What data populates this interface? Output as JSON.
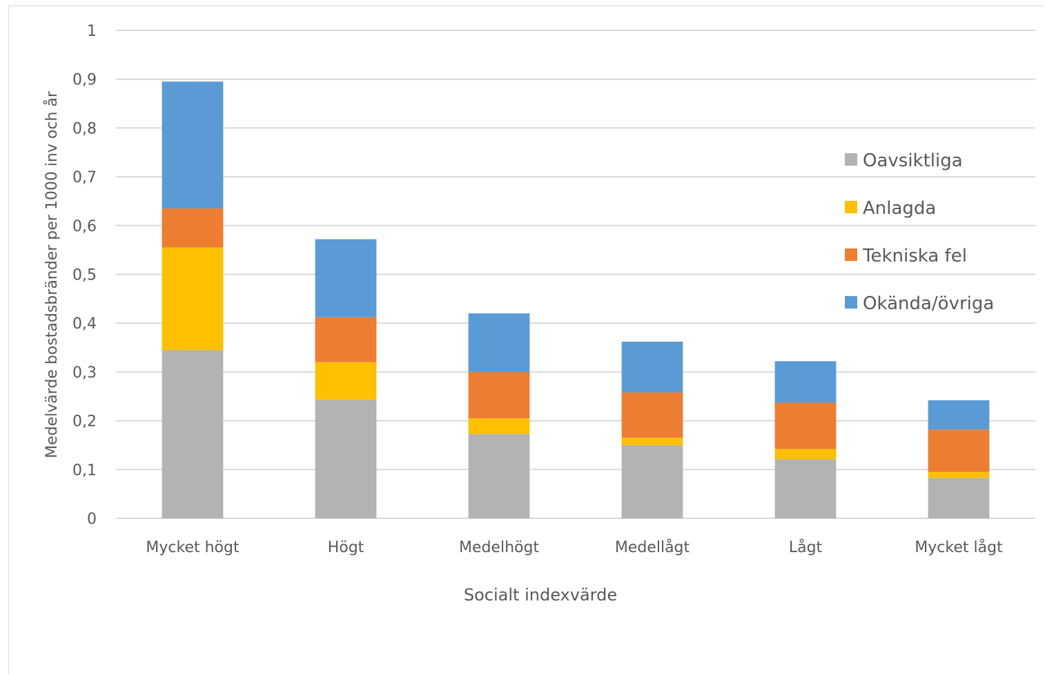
{
  "chart_data": {
    "type": "bar",
    "stacked": true,
    "xlabel": "Socialt indexvärde",
    "ylabel": "Medelvärde bostadsbränder per 1000 inv och år",
    "ylim": [
      0,
      1
    ],
    "yticks": [
      "0",
      "0,1",
      "0,2",
      "0,3",
      "0,4",
      "0,5",
      "0,6",
      "0,7",
      "0,8",
      "0,9",
      "1"
    ],
    "grid": true,
    "legend_position": "right",
    "categories": [
      "Mycket högt",
      "Högt",
      "Medelhögt",
      "Medellågt",
      "Lågt",
      "Mycket lågt"
    ],
    "series": [
      {
        "name": "Oavsiktliga",
        "color": "#b3b3b3",
        "values": [
          0.345,
          0.243,
          0.173,
          0.15,
          0.121,
          0.083
        ]
      },
      {
        "name": "Anlagda",
        "color": "#fec000",
        "values": [
          0.21,
          0.077,
          0.032,
          0.015,
          0.021,
          0.012
        ]
      },
      {
        "name": "Tekniska fel",
        "color": "#ed7d31",
        "values": [
          0.08,
          0.092,
          0.095,
          0.093,
          0.095,
          0.087
        ]
      },
      {
        "name": "Okända/övriga",
        "color": "#5b9bd5",
        "values": [
          0.26,
          0.16,
          0.12,
          0.104,
          0.085,
          0.06
        ]
      }
    ]
  }
}
